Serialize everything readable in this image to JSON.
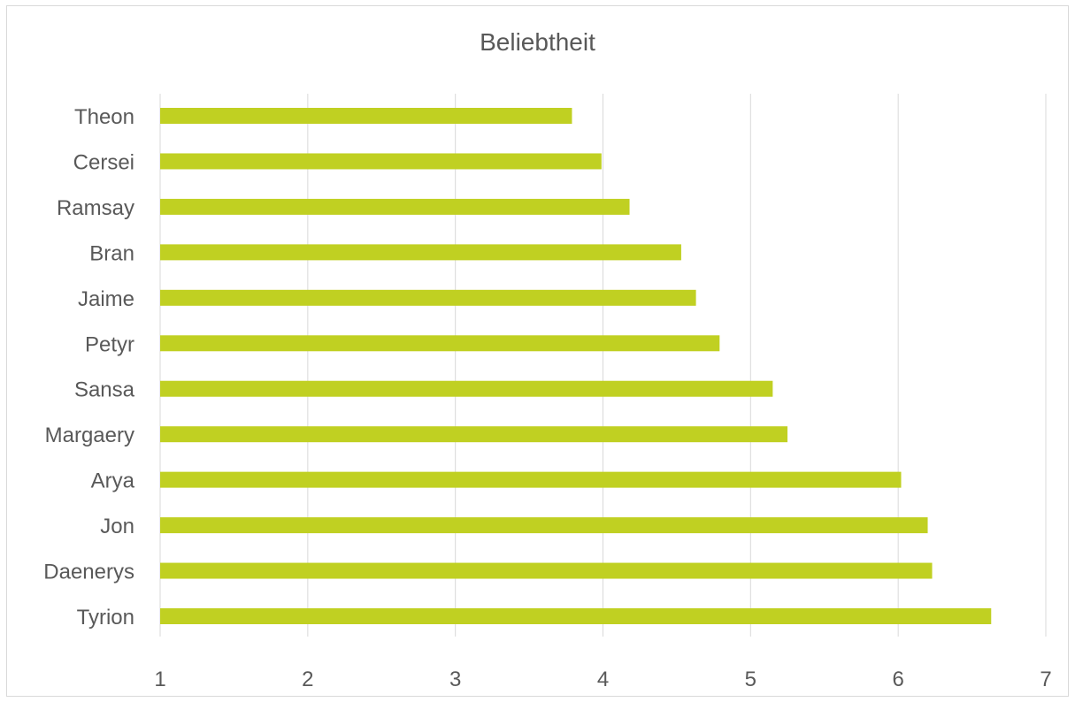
{
  "chart_data": {
    "type": "bar",
    "orientation": "horizontal",
    "title": "Beliebtheit",
    "xlabel": "",
    "ylabel": "",
    "xlim": [
      1,
      7
    ],
    "x_ticks": [
      "1",
      "2",
      "3",
      "4",
      "5",
      "6",
      "7"
    ],
    "grid": "vertical",
    "legend": "none",
    "bar_color": "#c0d022",
    "categories": [
      "Theon",
      "Cersei",
      "Ramsay",
      "Bran",
      "Jaime",
      "Petyr",
      "Sansa",
      "Margaery",
      "Arya",
      "Jon",
      "Daenerys",
      "Tyrion"
    ],
    "values": [
      3.79,
      3.99,
      4.18,
      4.53,
      4.63,
      4.79,
      5.15,
      5.25,
      6.02,
      6.2,
      6.23,
      6.63
    ]
  }
}
